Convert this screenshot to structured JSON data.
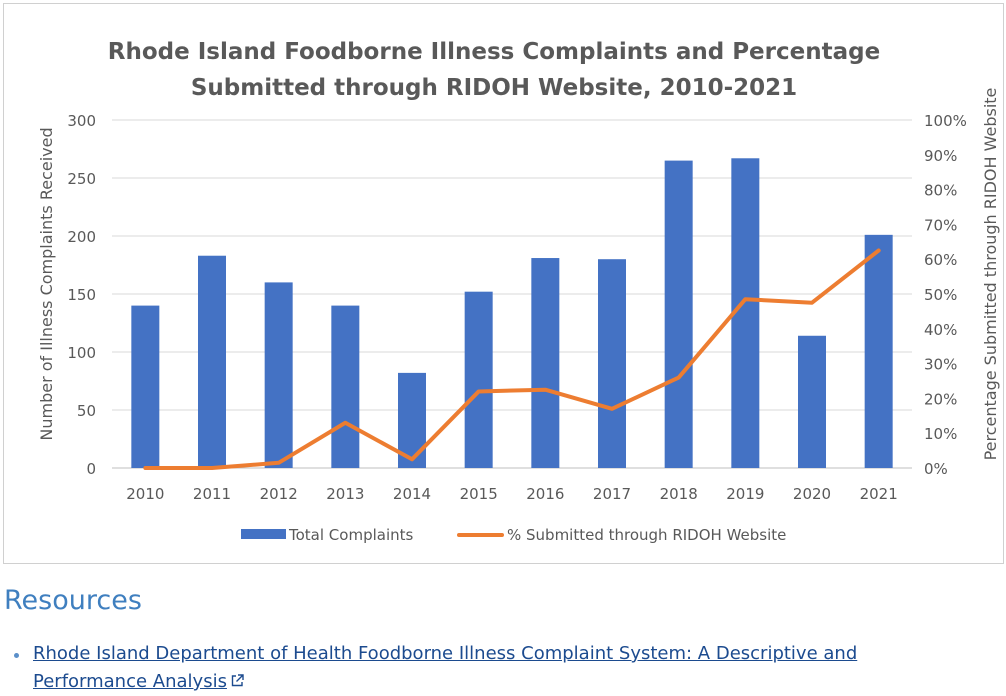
{
  "chart_data": {
    "type": "bar",
    "title": "Rhode Island Foodborne Illness Complaints and Percentage Submitted through RIDOH Website, 2010-2021",
    "title_lines": [
      "Rhode Island Foodborne Illness Complaints and Percentage",
      "Submitted through RIDOH Website, 2010-2021"
    ],
    "categories": [
      "2010",
      "2011",
      "2012",
      "2013",
      "2014",
      "2015",
      "2016",
      "2017",
      "2018",
      "2019",
      "2020",
      "2021"
    ],
    "series": [
      {
        "name": "Total Complaints",
        "type": "bar",
        "axis": "left",
        "color": "#4472c4",
        "values": [
          140,
          183,
          160,
          140,
          82,
          152,
          181,
          180,
          265,
          267,
          114,
          201
        ]
      },
      {
        "name": "% Submitted through RIDOH Website",
        "type": "line",
        "axis": "right",
        "color": "#ed7d31",
        "values": [
          0,
          0,
          1.5,
          13,
          2.5,
          22,
          22.5,
          17,
          26,
          48.5,
          47.5,
          62.5
        ]
      }
    ],
    "ylabel": "Number of Illness Complaints Received",
    "ylim": [
      0,
      300
    ],
    "yticks": [
      "0",
      "50",
      "100",
      "150",
      "200",
      "250",
      "300"
    ],
    "y2label": "Percentage Submitted through RIDOH Website",
    "y2lim": [
      0,
      100
    ],
    "y2ticks": [
      "0%",
      "10%",
      "20%",
      "30%",
      "40%",
      "50%",
      "60%",
      "70%",
      "80%",
      "90%",
      "100%"
    ],
    "grid": true,
    "legend_position": "bottom"
  },
  "resources": {
    "heading": "Resources",
    "links": [
      {
        "line1": "Rhode Island Department of Health Foodborne Illness Complaint System: A Descriptive and",
        "line2": "Performance Analysis"
      }
    ]
  },
  "icons": {
    "external": "external-link-icon"
  }
}
